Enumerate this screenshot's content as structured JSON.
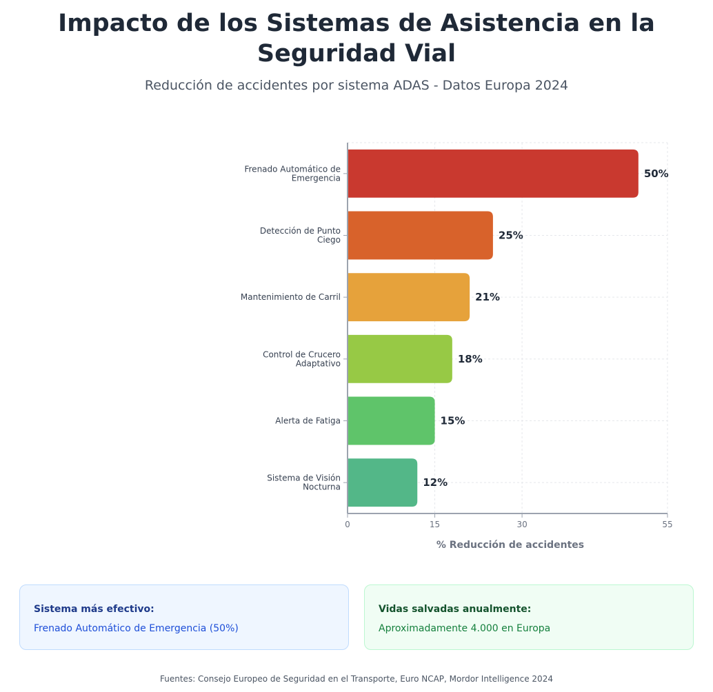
{
  "header": {
    "title": "Impacto de los Sistemas de Asistencia en la Seguridad Vial",
    "subtitle": "Reducción de accidentes por sistema ADAS - Datos Europa 2024"
  },
  "chart_data": {
    "type": "bar",
    "orientation": "horizontal",
    "title": "Impacto de los Sistemas de Asistencia en la Seguridad Vial",
    "subtitle": "Reducción de accidentes por sistema ADAS - Datos Europa 2024",
    "categories": [
      "Frenado Automático de Emergencia",
      "Detección de Punto Ciego",
      "Mantenimiento de Carril",
      "Control de Crucero Adaptativo",
      "Alerta de Fatiga",
      "Sistema de Visión Nocturna"
    ],
    "category_lines": [
      [
        "Frenado Automático de",
        "Emergencia"
      ],
      [
        "Detección de Punto",
        "Ciego"
      ],
      [
        "Mantenimiento de Carril"
      ],
      [
        "Control de Crucero",
        "Adaptativo"
      ],
      [
        "Alerta de Fatiga"
      ],
      [
        "Sistema de Visión",
        "Nocturna"
      ]
    ],
    "values": [
      50,
      25,
      21,
      18,
      15,
      12
    ],
    "value_labels": [
      "50%",
      "25%",
      "21%",
      "18%",
      "15%",
      "12%"
    ],
    "colors": [
      "#c9392f",
      "#d8622b",
      "#e6a23b",
      "#97c945",
      "#5fc46a",
      "#53b788"
    ],
    "xlabel": "% Reducción de accidentes",
    "ylabel": "",
    "xlim": [
      0,
      55
    ],
    "xticks": [
      0,
      15,
      30,
      55
    ],
    "xtick_labels": [
      "0",
      "15",
      "30",
      "55"
    ],
    "grid": true,
    "legend": "none"
  },
  "cards": {
    "most_effective": {
      "title": "Sistema más efectivo:",
      "text": "Frenado Automático de Emergencia (50%)"
    },
    "lives_saved": {
      "title": "Vidas salvadas anualmente:",
      "text": "Aproximadamente 4.000 en Europa"
    }
  },
  "footer": {
    "sources": "Fuentes: Consejo Europeo de Seguridad en el Transporte, Euro NCAP, Mordor Intelligence 2024"
  }
}
